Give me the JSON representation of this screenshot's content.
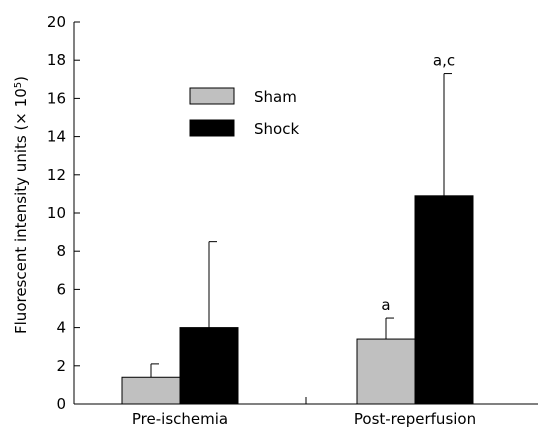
{
  "chart_data": {
    "type": "bar",
    "categories": [
      "Pre-ischemia",
      "Post-reperfusion"
    ],
    "series": [
      {
        "name": "Sham",
        "color": "#c0c0c0",
        "values": [
          1.4,
          3.4
        ],
        "error_upper": [
          2.1,
          4.5
        ]
      },
      {
        "name": "Shock",
        "color": "#000000",
        "values": [
          4.0,
          10.9
        ],
        "error_upper": [
          8.5,
          17.3
        ]
      }
    ],
    "annotations": [
      {
        "series": 0,
        "category": 1,
        "text": "a"
      },
      {
        "series": 1,
        "category": 1,
        "text": "a,c"
      }
    ],
    "ylabel_main": "Fluorescent intensity units (",
    "ylabel_times": "×",
    "ylabel_base": "10",
    "ylabel_exp": "5",
    "ylabel_close": ")",
    "ylim": [
      0,
      20
    ],
    "yticks": [
      0,
      2,
      4,
      6,
      8,
      10,
      12,
      14,
      16,
      18,
      20
    ],
    "grid": false,
    "legend_position": "upper-middle"
  }
}
